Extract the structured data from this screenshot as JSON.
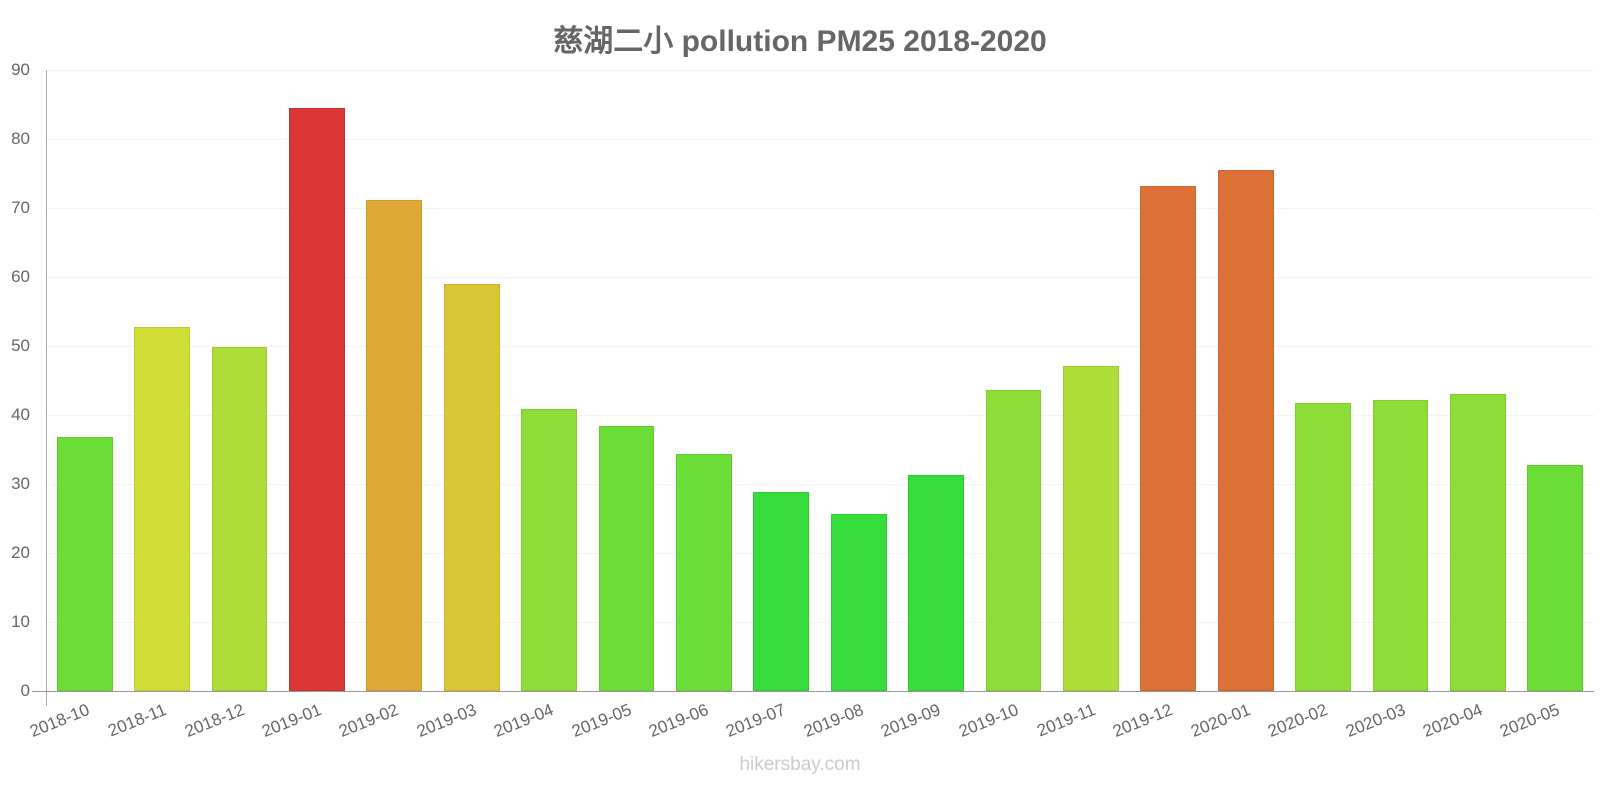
{
  "chart_data": {
    "type": "bar",
    "title": "慈湖二小 pollution PM25 2018-2020",
    "xlabel": "",
    "ylabel": "",
    "ylim": [
      0,
      90
    ],
    "yticks": [
      0,
      10,
      20,
      30,
      40,
      50,
      60,
      70,
      80,
      90
    ],
    "grid": true,
    "legend": null,
    "categories": [
      "2018-10",
      "2018-11",
      "2018-12",
      "2019-01",
      "2019-02",
      "2019-03",
      "2019-04",
      "2019-05",
      "2019-06",
      "2019-07",
      "2019-08",
      "2019-09",
      "2019-10",
      "2019-11",
      "2019-12",
      "2020-01",
      "2020-02",
      "2020-03",
      "2020-04",
      "2020-05"
    ],
    "values": [
      36.8,
      52.8,
      49.9,
      84.5,
      71.2,
      59.0,
      40.9,
      38.4,
      34.3,
      28.8,
      25.7,
      31.3,
      43.6,
      47.1,
      73.2,
      75.5,
      41.7,
      42.2,
      43.0,
      32.8
    ],
    "colors": [
      "#6ade36",
      "#d0dd36",
      "#addd36",
      "#db3636",
      "#dda836",
      "#d9c636",
      "#8ddd36",
      "#6ade36",
      "#6ade36",
      "#36dd3a",
      "#36dd3a",
      "#36dd3a",
      "#8ddd36",
      "#addd36",
      "#dd7036",
      "#dd7036",
      "#8ddd36",
      "#8ddd36",
      "#8ddd36",
      "#6ade36"
    ]
  },
  "footer": {
    "watermark": "hikersbay.com"
  }
}
